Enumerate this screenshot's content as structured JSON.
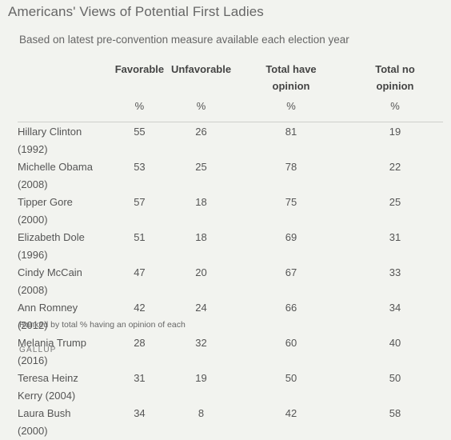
{
  "title": "Americans' Views of Potential First Ladies",
  "subtitle": "Based on latest pre-convention measure available each election year",
  "columns": [
    "Favorable",
    "Unfavorable",
    "Total have opinion",
    "Total no opinion"
  ],
  "percent_label": "%",
  "rows": [
    {
      "name": "Hillary Clinton (1992)",
      "favorable": "55",
      "unfavorable": "26",
      "total_opinion": "81",
      "no_opinion": "19"
    },
    {
      "name": "Michelle Obama (2008)",
      "favorable": "53",
      "unfavorable": "25",
      "total_opinion": "78",
      "no_opinion": "22"
    },
    {
      "name": "Tipper Gore (2000)",
      "favorable": "57",
      "unfavorable": "18",
      "total_opinion": "75",
      "no_opinion": "25"
    },
    {
      "name": "Elizabeth Dole (1996)",
      "favorable": "51",
      "unfavorable": "18",
      "total_opinion": "69",
      "no_opinion": "31"
    },
    {
      "name": "Cindy McCain (2008)",
      "favorable": "47",
      "unfavorable": "20",
      "total_opinion": "67",
      "no_opinion": "33"
    },
    {
      "name": "Ann Romney (2012)",
      "favorable": "42",
      "unfavorable": "24",
      "total_opinion": "66",
      "no_opinion": "34"
    },
    {
      "name": "Melania Trump (2016)",
      "favorable": "28",
      "unfavorable": "32",
      "total_opinion": "60",
      "no_opinion": "40"
    },
    {
      "name": "Teresa Heinz Kerry (2004)",
      "favorable": "31",
      "unfavorable": "19",
      "total_opinion": "50",
      "no_opinion": "50"
    },
    {
      "name": "Laura Bush (2000)",
      "favorable": "34",
      "unfavorable": "8",
      "total_opinion": "42",
      "no_opinion": "58"
    }
  ],
  "footnote": "Ranked by total % having an opinion of each",
  "brand": "GALLUP"
}
